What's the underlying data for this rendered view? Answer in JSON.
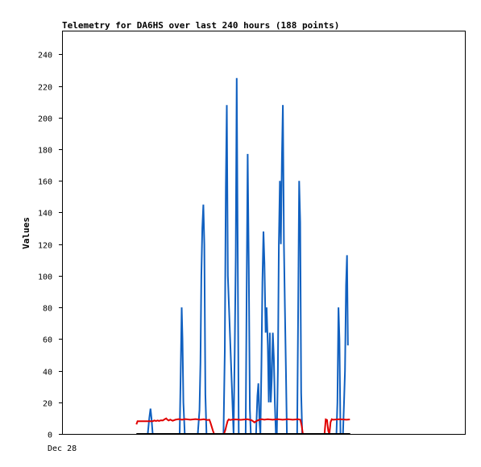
{
  "chart_data": {
    "type": "line",
    "title": "Telemetry for DA6HS over last 240 hours (188 points)",
    "ylabel": "Values",
    "xlabel": "",
    "x_tick_labels": [
      "Dec 28"
    ],
    "x_unit": "hours",
    "xlim": [
      0,
      240
    ],
    "ylim": [
      0,
      255
    ],
    "y_ticks": [
      0,
      20,
      40,
      60,
      80,
      100,
      120,
      140,
      160,
      180,
      200,
      220,
      240
    ],
    "grid": false,
    "colors": {
      "blue": "#1060c0",
      "red": "#e00000",
      "black": "#000000"
    },
    "series": [
      {
        "color": "#1060c0",
        "x": [
          50.6,
          51.5,
          52.2,
          52.8,
          53.5,
          69.6,
          70.2,
          70.8,
          71.3,
          71.8,
          72.6,
          80.4,
          81.4,
          82.0,
          82.5,
          83.1,
          83.7,
          84.3,
          84.9,
          85.6,
          95.7,
          96.5,
          97.1,
          97.7,
          98.3,
          101.7,
          102.4,
          103.0,
          103.6,
          104.2,
          104.8,
          108.9,
          109.5,
          110.1,
          110.8,
          111.4,
          112.0,
          115.1,
          115.9,
          116.5,
          117.1,
          117.7,
          118.3,
          118.9,
          119.5,
          120.1,
          120.8,
          121.4,
          122.1,
          122.7,
          123.3,
          123.9,
          124.5,
          125.1,
          125.7,
          126.3,
          126.9,
          127.5,
          128.1,
          128.7,
          129.3,
          129.9,
          130.5,
          131.1,
          131.7,
          132.3,
          132.9,
          133.5,
          134.1,
          139.6,
          140.2,
          140.8,
          141.4,
          142.0,
          142.6,
          163.0,
          163.6,
          164.2,
          164.8,
          165.4,
          166.9,
          167.5,
          168.1,
          168.7,
          169.3,
          169.8
        ],
        "y": [
          0,
          10,
          16,
          10,
          0,
          0,
          40,
          80,
          60,
          20,
          0,
          0,
          15,
          45,
          100,
          130,
          145,
          120,
          25,
          0,
          0,
          52,
          156,
          208,
          100,
          0,
          52,
          112,
          225,
          112,
          0,
          0,
          88,
          177,
          104,
          16,
          0,
          0,
          24,
          32,
          8,
          0,
          44,
          96,
          128,
          108,
          64,
          80,
          56,
          20,
          64,
          20,
          36,
          64,
          48,
          20,
          0,
          0,
          40,
          120,
          160,
          120,
          174,
          208,
          120,
          80,
          40,
          0,
          0,
          0,
          80,
          160,
          134,
          26,
          0,
          0,
          20,
          80,
          60,
          0,
          0,
          20,
          40,
          94,
          113,
          56
        ]
      },
      {
        "color": "#e00000",
        "x": [
          43.8,
          44.5,
          50.0,
          53.5,
          54.5,
          55.5,
          56.5,
          57.3,
          58.4,
          59.5,
          60.5,
          61.6,
          62.3,
          63.0,
          64.0,
          65.4,
          67.0,
          69.0,
          71.0,
          73.0,
          76.0,
          79.0,
          82.0,
          84.0,
          86.0,
          87.3,
          88.0,
          88.7,
          89.4,
          90.1,
          96.0,
          96.8,
          97.5,
          98.2,
          98.9,
          99.6,
          101.0,
          103.0,
          106.0,
          110.0,
          112.5,
          114.2,
          115.4,
          117.0,
          118.6,
          120.0,
          122.0,
          125.0,
          128.0,
          131.0,
          134.0,
          137.0,
          140.0,
          141.5,
          142.3,
          143.0,
          155.9,
          156.6,
          157.4,
          158.1,
          158.8,
          159.5,
          160.2,
          161.0,
          165.0,
          169.0,
          171.0
        ],
        "y": [
          6,
          8,
          8,
          8,
          8.5,
          8.2,
          8.5,
          8.2,
          8.6,
          8.5,
          9.2,
          9.8,
          9.0,
          8.5,
          9.1,
          8.3,
          9.0,
          9.4,
          9.0,
          9.4,
          9.0,
          9.4,
          9.0,
          9.3,
          8.8,
          9.0,
          7.0,
          4.5,
          2.0,
          0,
          0,
          2.5,
          5.5,
          8.3,
          9.2,
          8.8,
          9.1,
          9.2,
          8.9,
          9.3,
          8.6,
          7.3,
          8.2,
          9.0,
          9.3,
          9.0,
          9.3,
          9.0,
          9.3,
          9.0,
          9.3,
          9.0,
          9.3,
          9.0,
          5.0,
          0,
          0,
          9.2,
          8.8,
          2.0,
          0,
          7.5,
          9.3,
          9.0,
          9.3,
          9.0,
          9.2
        ]
      },
      {
        "color": "#000000",
        "x": [
          43.8,
          171.2
        ],
        "y": [
          0,
          0
        ]
      }
    ]
  }
}
